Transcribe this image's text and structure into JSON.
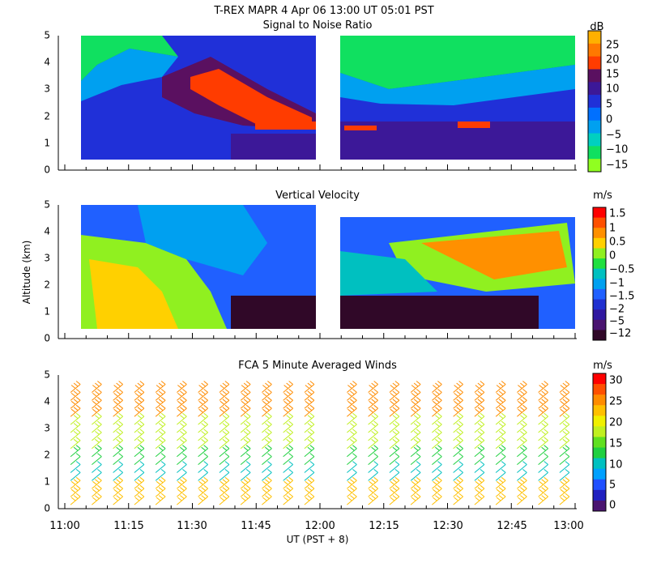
{
  "header": {
    "title": "T-REX  MAPR  4 Apr 06  13:00 UT  05:01  PST"
  },
  "common": {
    "ylabel": "Altitude (km)",
    "xlabel": "UT  (PST + 8)",
    "yticks": [
      0,
      1,
      2,
      3,
      4,
      5
    ],
    "xticks": [
      "11:00",
      "11:15",
      "11:30",
      "11:45",
      "12:00",
      "12:15",
      "12:30",
      "12:45",
      "13:00"
    ],
    "xrange_minutes": [
      0,
      120
    ],
    "yrange_km": [
      0,
      5
    ],
    "gap_minutes": [
      58.5,
      65
    ]
  },
  "chart_data": [
    {
      "type": "heatmap",
      "title": "Signal to Noise Ratio",
      "unit": "dB",
      "colorbar_ticks": [
        "25",
        "20",
        "15",
        "10",
        "5",
        "0",
        "−5",
        "−10",
        "−15"
      ],
      "colorbar_colors": [
        "#ffb000",
        "#ff7800",
        "#ff3c00",
        "#5a1060",
        "#3c1898",
        "#2030d8",
        "#0070ff",
        "#00a0f0",
        "#00d0c0",
        "#10e060",
        "#90ff20"
      ]
    },
    {
      "type": "heatmap",
      "title": "Vertical Velocity",
      "unit": "m/s",
      "colorbar_ticks": [
        "1.5",
        "1",
        "0.5",
        "0",
        "−0.5",
        "−1",
        "−1.5",
        "−2",
        "−5",
        "−12"
      ],
      "colorbar_colors": [
        "#ff0000",
        "#ff5000",
        "#ff9000",
        "#ffd000",
        "#90f020",
        "#20e040",
        "#00c0c0",
        "#00a0f0",
        "#2060ff",
        "#2030d0",
        "#3018a0",
        "#4a1470",
        "#300828"
      ]
    },
    {
      "type": "scatter",
      "title": "FCA 5 Minute Averaged Winds",
      "unit": "m/s",
      "colorbar_ticks": [
        "30",
        "25",
        "20",
        "15",
        "10",
        "5",
        "0"
      ],
      "colorbar_colors": [
        "#ff0000",
        "#ff5000",
        "#ff8c00",
        "#ffc000",
        "#f0f000",
        "#c0f020",
        "#60e020",
        "#20d040",
        "#00c0c0",
        "#00a0ff",
        "#2050ff",
        "#2020c0",
        "#4a1470"
      ]
    }
  ]
}
